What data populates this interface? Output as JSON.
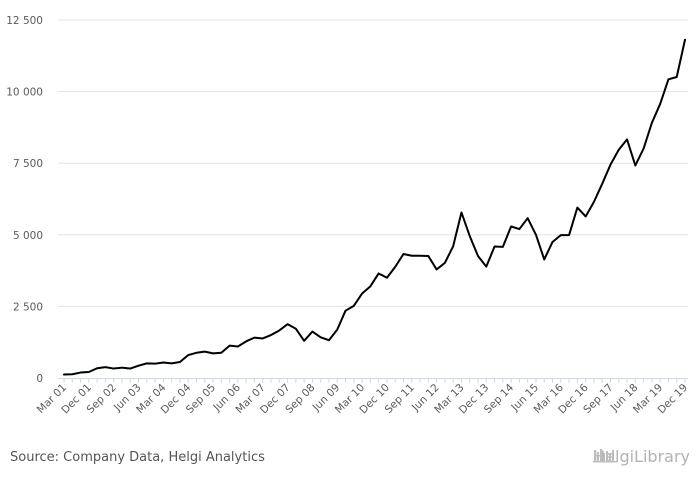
{
  "chart_data": {
    "type": "line",
    "title": "",
    "xlabel": "",
    "ylabel": "",
    "ylim": [
      0,
      12500
    ],
    "yticks": [
      0,
      2500,
      5000,
      7500,
      10000,
      12500
    ],
    "ytick_labels": [
      "0",
      "2 500",
      "5 000",
      "7 500",
      "10 000",
      "12 500"
    ],
    "grid": "horizontal",
    "legend": "none",
    "series_color": "#000000",
    "x_labels": [
      "Mar 01",
      "Dec 01",
      "Sep 02",
      "Jun 03",
      "Mar 04",
      "Dec 04",
      "Sep 05",
      "Jun 06",
      "Mar 07",
      "Dec 07",
      "Sep 08",
      "Jun 09",
      "Mar 10",
      "Dec 10",
      "Sep 11",
      "Jun 12",
      "Mar 13",
      "Dec 13",
      "Sep 14",
      "Jun 15",
      "Mar 16",
      "Dec 16",
      "Sep 17",
      "Jun 18",
      "Mar 19",
      "Dec 19"
    ],
    "series": [
      {
        "values": [
          120,
          130,
          190,
          210,
          340,
          380,
          330,
          360,
          330,
          430,
          510,
          500,
          540,
          510,
          560,
          800,
          880,
          920,
          860,
          880,
          1130,
          1100,
          1280,
          1410,
          1380,
          1500,
          1660,
          1880,
          1720,
          1300,
          1620,
          1420,
          1320,
          1690,
          2350,
          2520,
          2950,
          3200,
          3650,
          3500,
          3880,
          4330,
          4270,
          4270,
          4260,
          3790,
          4020,
          4600,
          5780,
          4960,
          4260,
          3890,
          4590,
          4580,
          5290,
          5200,
          5580,
          5000,
          4140,
          4750,
          4990,
          4990,
          5950,
          5640,
          6150,
          6780,
          7450,
          7970,
          8330,
          7420,
          8010,
          8910,
          9570,
          10430,
          10510,
          11810
        ]
      }
    ]
  },
  "footer": {
    "source": "Source: Company Data, Helgi Analytics",
    "logo_text": "HelgiLibrary"
  }
}
